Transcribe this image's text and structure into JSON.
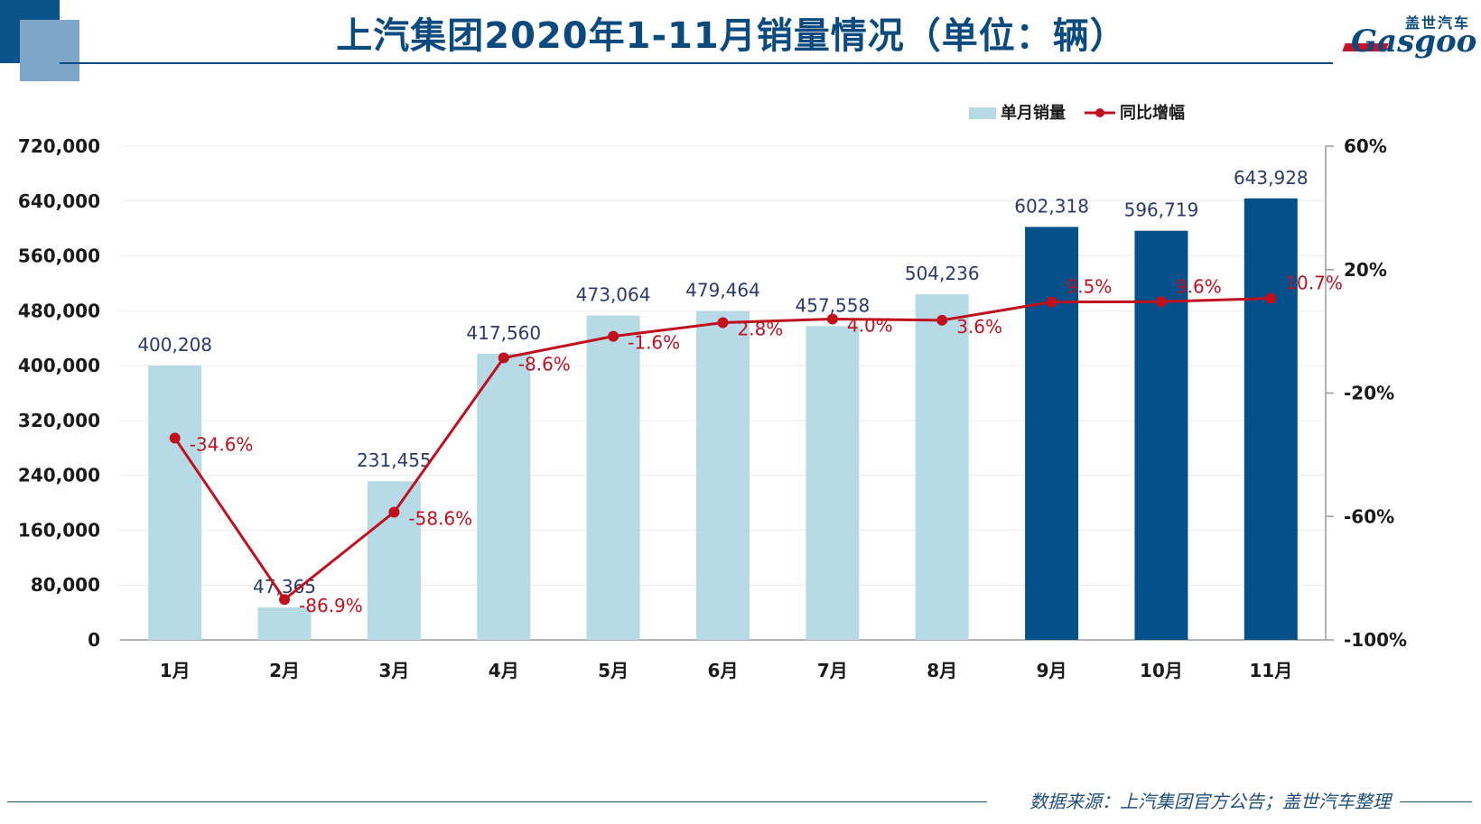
{
  "header": {
    "title": "上汽集团2020年1-11月销量情况（单位：辆）",
    "logo_cn": "盖世汽车",
    "logo_en": "Gasgoo"
  },
  "footer": {
    "source": "数据来源：上汽集团官方公告；盖世汽车整理"
  },
  "colors": {
    "bar_light": "#b6dbe7",
    "bar_dark": "#04508a",
    "line": "#c0101e",
    "value_label": "#2b3a6b",
    "title": "#0b4a7e",
    "axis_text": "#1a1a1a"
  },
  "chart_data": {
    "type": "bar",
    "title": "上汽集团2020年1-11月销量情况（单位：辆）",
    "categories": [
      "1月",
      "2月",
      "3月",
      "4月",
      "5月",
      "6月",
      "7月",
      "8月",
      "9月",
      "10月",
      "11月"
    ],
    "series": [
      {
        "name": "单月销量",
        "type": "bar",
        "axis": "left",
        "values": [
          400208,
          47365,
          231455,
          417560,
          473064,
          479464,
          457558,
          504236,
          602318,
          596719,
          643928
        ],
        "labels": [
          "400,208",
          "47,365",
          "231,455",
          "417,560",
          "473,064",
          "479,464",
          "457,558",
          "504,236",
          "602,318",
          "596,719",
          "643,928"
        ],
        "highlight_from_index": 8
      },
      {
        "name": "同比增幅",
        "type": "line",
        "axis": "right",
        "values": [
          -34.6,
          -86.9,
          -58.6,
          -8.6,
          -1.6,
          2.8,
          4.0,
          3.6,
          9.5,
          9.6,
          10.7
        ],
        "labels": [
          "-34.6%",
          "-86.9%",
          "-58.6%",
          "-8.6%",
          "-1.6%",
          "2.8%",
          "4.0%",
          "3.6%",
          "9.5%",
          "9.6%",
          "10.7%"
        ]
      }
    ],
    "y_left": {
      "range": [
        0,
        720000
      ],
      "ticks": [
        0,
        80000,
        160000,
        240000,
        320000,
        400000,
        480000,
        560000,
        640000,
        720000
      ],
      "tick_labels": [
        "0",
        "80,000",
        "160,000",
        "240,000",
        "320,000",
        "400,000",
        "480,000",
        "560,000",
        "640,000",
        "720,000"
      ]
    },
    "y_right": {
      "range": [
        -100,
        60
      ],
      "ticks": [
        -100,
        -60,
        -20,
        20,
        60
      ],
      "tick_labels": [
        "-100%",
        "-60%",
        "-20%",
        "20%",
        "60%"
      ]
    },
    "grid": true,
    "legend_position": "top-right"
  }
}
